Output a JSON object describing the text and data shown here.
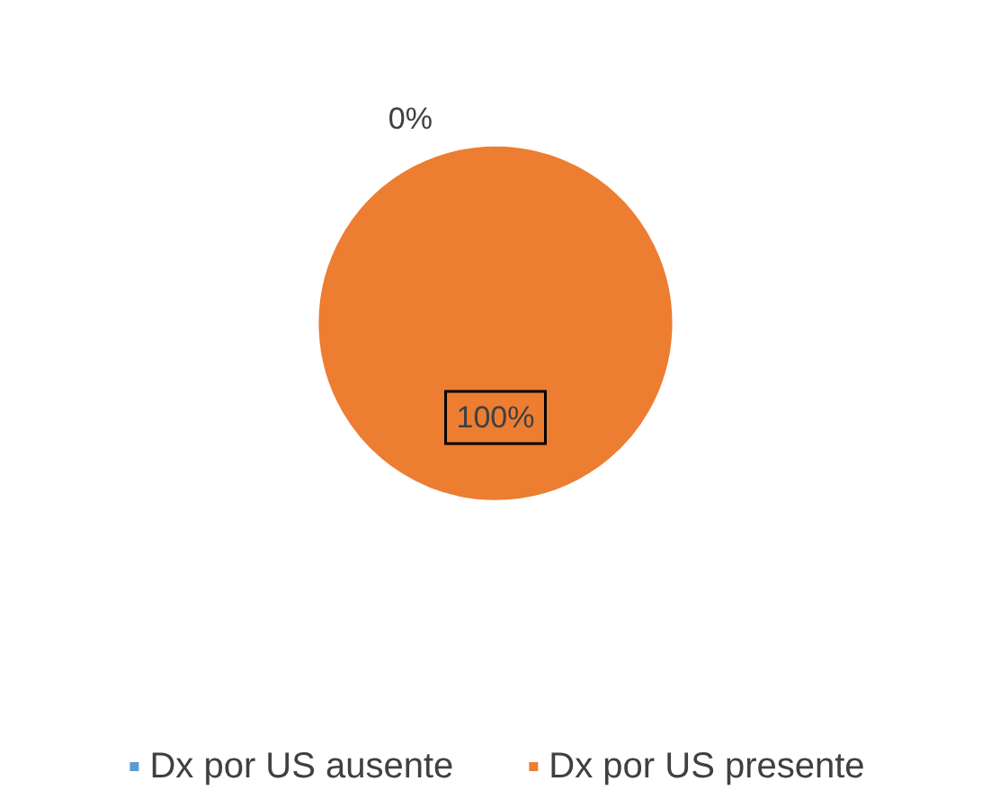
{
  "chart_data": {
    "type": "pie",
    "categories": [
      "Dx por US ausente",
      "Dx por US presente"
    ],
    "values": [
      0,
      100
    ],
    "colors": [
      "#5b9bd5",
      "#ed7d31"
    ],
    "value_labels": [
      "0%",
      "100%"
    ],
    "legend": "bottom"
  }
}
